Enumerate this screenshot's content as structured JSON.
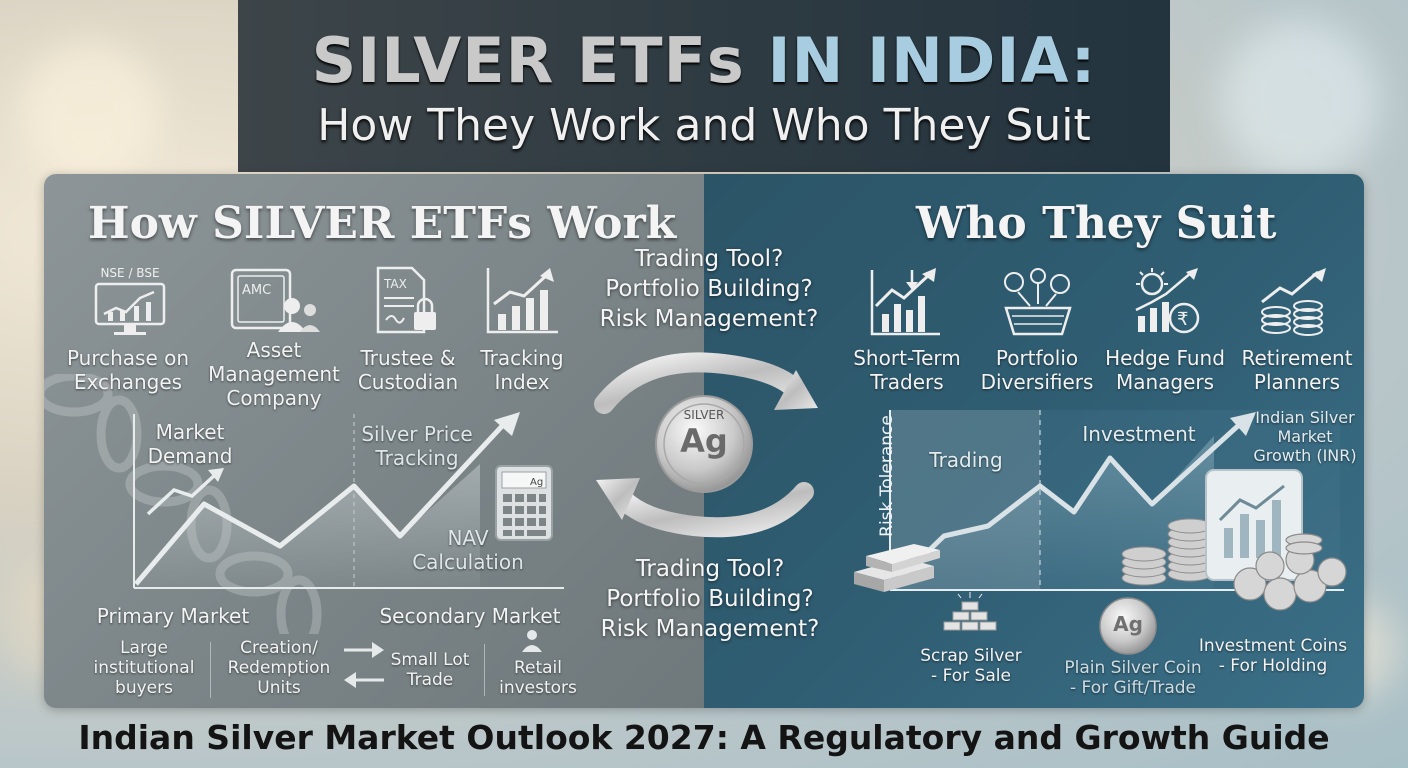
{
  "title": {
    "line1_part1": "SILVER ETFs",
    "line1_part2": "IN INDIA:",
    "line2": "How They Work and Who They Suit"
  },
  "left": {
    "heading": "How SILVER ETFs Work",
    "icons": [
      {
        "name": "exchange-monitor-icon",
        "top": "NSE / BSE",
        "label1": "Purchase on",
        "label2": "Exchanges"
      },
      {
        "name": "amc-safe-icon",
        "top": "AMC",
        "label1": "Asset",
        "label2": "Management",
        "label3": "Company"
      },
      {
        "name": "tax-document-icon",
        "top": "TAX",
        "label1": "Trustee &",
        "label2": "Custodian"
      },
      {
        "name": "tracking-chart-icon",
        "label1": "Tracking",
        "label2": "Index"
      }
    ],
    "market_demand": [
      "Market",
      "Demand"
    ],
    "silver_price_tracking": [
      "Silver Price",
      "Tracking"
    ],
    "nav_calc": [
      "NAV",
      "Calculation"
    ],
    "calculator_tag": "Ag",
    "primary_market": "Primary Market",
    "secondary_market": "Secondary Market",
    "large_buyers": [
      "Large",
      "institutional",
      "buyers"
    ],
    "creation_units": [
      "Creation/",
      "Redemption",
      "Units"
    ],
    "small_lot": [
      "Small Lot",
      "Trade"
    ],
    "retail": [
      "Retail",
      "investors"
    ]
  },
  "center": {
    "questions_top": [
      "Trading Tool?",
      "Portfolio Building?",
      "Risk Management?"
    ],
    "questions_bottom": [
      "Trading Tool?",
      "Portfolio Building?",
      "Risk Management?"
    ],
    "coin_top": "SILVER",
    "coin_symbol": "Ag"
  },
  "right": {
    "heading": "Who They Suit",
    "icons": [
      {
        "name": "short-term-trader-icon",
        "label1": "Short-Term",
        "label2": "Traders"
      },
      {
        "name": "diversifier-basket-icon",
        "label1": "Portfolio",
        "label2": "Diversifiers"
      },
      {
        "name": "hedge-fund-icon",
        "label1": "Hedge Fund",
        "label2": "Managers"
      },
      {
        "name": "retirement-coins-icon",
        "label1": "Retirement",
        "label2": "Planners"
      }
    ],
    "risk_axis": "Risk Tolerance",
    "zone_trading": "Trading",
    "zone_investment": "Investment",
    "growth_label": [
      "Indian Silver",
      "Market",
      "Growth (INR)"
    ],
    "scrap": [
      "Scrap Silver",
      "- For Sale"
    ],
    "plain_coin": [
      "Plain Silver Coin",
      "- For Gift/Trade"
    ],
    "plain_coin_symbol": "Ag",
    "investment_coins": [
      "Investment Coins",
      "- For Holding"
    ]
  },
  "footer": "Indian Silver Market Outlook 2027: A Regulatory and Growth Guide",
  "colors": {
    "left_panel": "#7b8588",
    "right_panel": "#2f5d72",
    "title_band": "#2f3b42",
    "title_accent": "#a9cde0",
    "silver": "#d8d8d8"
  }
}
